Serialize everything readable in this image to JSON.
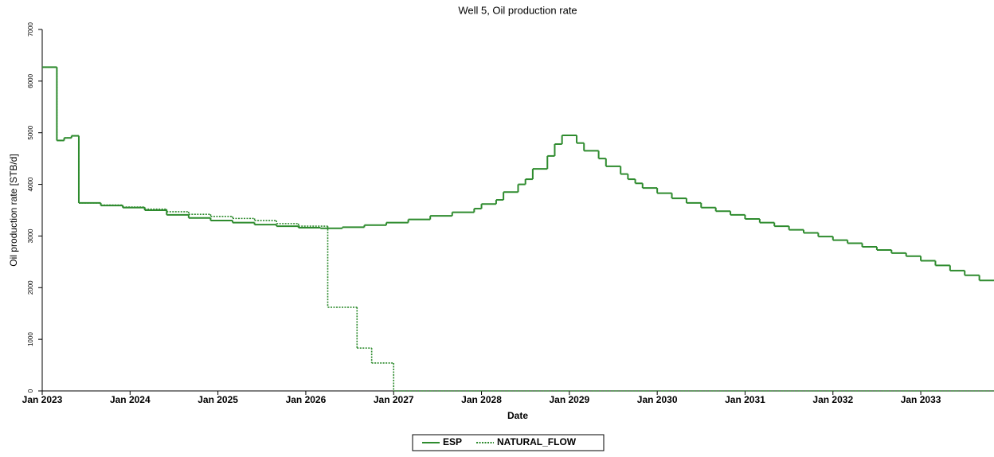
{
  "chart_data": {
    "type": "step",
    "title": "Well 5, Oil production rate",
    "x_label": "Date",
    "y_label": "Oil production rate [STB/d]",
    "xlim": [
      "2023-01",
      "2033-11"
    ],
    "xticks": [
      {
        "value": "2023-01",
        "label": "Jan 2023"
      },
      {
        "value": "2024-01",
        "label": "Jan 2024"
      },
      {
        "value": "2025-01",
        "label": "Jan 2025"
      },
      {
        "value": "2026-01",
        "label": "Jan 2026"
      },
      {
        "value": "2027-01",
        "label": "Jan 2027"
      },
      {
        "value": "2028-01",
        "label": "Jan 2028"
      },
      {
        "value": "2029-01",
        "label": "Jan 2029"
      },
      {
        "value": "2030-01",
        "label": "Jan 2030"
      },
      {
        "value": "2031-01",
        "label": "Jan 2031"
      },
      {
        "value": "2032-01",
        "label": "Jan 2032"
      },
      {
        "value": "2033-01",
        "label": "Jan 2033"
      }
    ],
    "ylim": [
      0,
      7000
    ],
    "yticks": [
      0,
      1000,
      2000,
      3000,
      4000,
      5000,
      6000,
      7000
    ],
    "series": [
      {
        "name": "ESP",
        "color": "#2e8b2e",
        "dash": "solid",
        "x": [
          "2023-01",
          "2023-03",
          "2023-04",
          "2023-05",
          "2023-06",
          "2023-09",
          "2023-12",
          "2024-03",
          "2024-06",
          "2024-09",
          "2024-12",
          "2025-03",
          "2025-06",
          "2025-09",
          "2025-12",
          "2026-03",
          "2026-06",
          "2026-09",
          "2026-12",
          "2027-03",
          "2027-06",
          "2027-09",
          "2027-12",
          "2028-01",
          "2028-03",
          "2028-04",
          "2028-06",
          "2028-07",
          "2028-08",
          "2028-10",
          "2028-11",
          "2028-12",
          "2029-02",
          "2029-03",
          "2029-05",
          "2029-06",
          "2029-08",
          "2029-09",
          "2029-10",
          "2029-11",
          "2030-01",
          "2030-03",
          "2030-05",
          "2030-07",
          "2030-09",
          "2030-11",
          "2031-01",
          "2031-03",
          "2031-05",
          "2031-07",
          "2031-09",
          "2031-11",
          "2032-01",
          "2032-03",
          "2032-05",
          "2032-07",
          "2032-09",
          "2032-11",
          "2033-01",
          "2033-03",
          "2033-05",
          "2033-07",
          "2033-09"
        ],
        "values": [
          6270,
          4850,
          4900,
          4940,
          3640,
          3590,
          3550,
          3500,
          3410,
          3350,
          3300,
          3260,
          3220,
          3190,
          3160,
          3150,
          3170,
          3210,
          3260,
          3320,
          3390,
          3460,
          3530,
          3620,
          3700,
          3850,
          4000,
          4100,
          4300,
          4550,
          4780,
          4950,
          4800,
          4650,
          4500,
          4350,
          4200,
          4100,
          4020,
          3930,
          3830,
          3730,
          3640,
          3550,
          3480,
          3410,
          3330,
          3260,
          3190,
          3120,
          3060,
          2990,
          2920,
          2860,
          2790,
          2730,
          2670,
          2610,
          2520,
          2430,
          2330,
          2240,
          2140
        ]
      },
      {
        "name": "NATURAL_FLOW",
        "color": "#2e8b2e",
        "dash": "dotted",
        "x": [
          "2023-01",
          "2023-03",
          "2023-04",
          "2023-05",
          "2023-06",
          "2023-09",
          "2023-12",
          "2024-03",
          "2024-06",
          "2024-09",
          "2024-12",
          "2025-03",
          "2025-06",
          "2025-09",
          "2025-12",
          "2026-04",
          "2026-08",
          "2026-10",
          "2027-01"
        ],
        "values": [
          6270,
          4850,
          4900,
          4940,
          3640,
          3600,
          3560,
          3520,
          3470,
          3420,
          3380,
          3340,
          3300,
          3240,
          3190,
          1620,
          830,
          540,
          0
        ]
      }
    ]
  }
}
